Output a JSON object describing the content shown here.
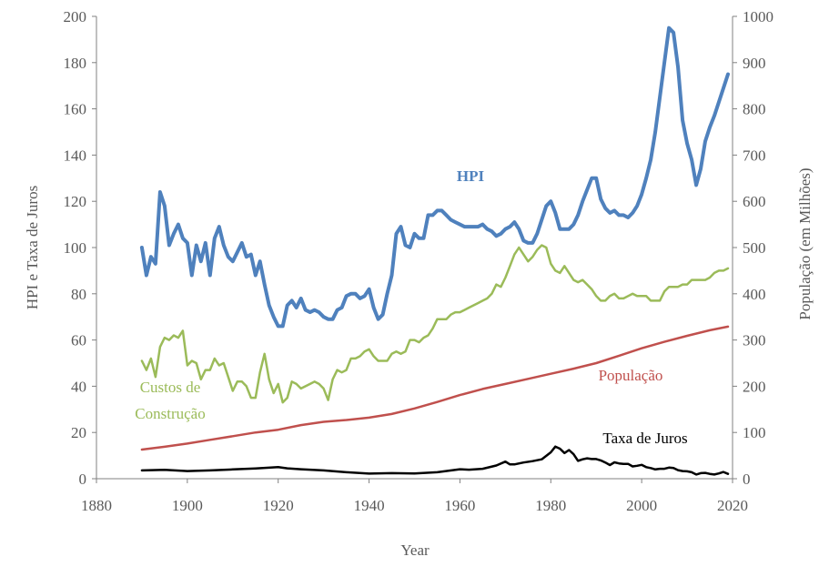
{
  "chart_data": {
    "type": "line",
    "xlabel": "Year",
    "ylabel_left": "HPI e Taxa de Juros",
    "ylabel_right": "População (em Milhões)",
    "xlim": [
      1880,
      2020
    ],
    "xticks": [
      "1880",
      "1900",
      "1920",
      "1940",
      "1960",
      "1980",
      "2000",
      "2020"
    ],
    "ylim_left": [
      0,
      200
    ],
    "yticks_left": [
      "0",
      "20",
      "40",
      "60",
      "80",
      "100",
      "120",
      "140",
      "160",
      "180",
      "200"
    ],
    "ylim_right": [
      0,
      1000
    ],
    "yticks_right": [
      "0",
      "100",
      "200",
      "300",
      "400",
      "500",
      "600",
      "700",
      "800",
      "900",
      "1000"
    ],
    "grid": false,
    "series": [
      {
        "name": "HPI",
        "label_text": "HPI",
        "axis": "left",
        "color": "#4f81bd",
        "x": [
          1890,
          1891,
          1892,
          1893,
          1894,
          1895,
          1896,
          1897,
          1898,
          1899,
          1900,
          1901,
          1902,
          1903,
          1904,
          1905,
          1906,
          1907,
          1908,
          1909,
          1910,
          1911,
          1912,
          1913,
          1914,
          1915,
          1916,
          1917,
          1918,
          1919,
          1920,
          1921,
          1922,
          1923,
          1924,
          1925,
          1926,
          1927,
          1928,
          1929,
          1930,
          1931,
          1932,
          1933,
          1934,
          1935,
          1936,
          1937,
          1938,
          1939,
          1940,
          1941,
          1942,
          1943,
          1944,
          1945,
          1946,
          1947,
          1948,
          1949,
          1950,
          1951,
          1952,
          1953,
          1954,
          1955,
          1956,
          1957,
          1958,
          1959,
          1960,
          1961,
          1962,
          1963,
          1964,
          1965,
          1966,
          1967,
          1968,
          1969,
          1970,
          1971,
          1972,
          1973,
          1974,
          1975,
          1976,
          1977,
          1978,
          1979,
          1980,
          1981,
          1982,
          1983,
          1984,
          1985,
          1986,
          1987,
          1988,
          1989,
          1990,
          1991,
          1992,
          1993,
          1994,
          1995,
          1996,
          1997,
          1998,
          1999,
          2000,
          2001,
          2002,
          2003,
          2004,
          2005,
          2006,
          2007,
          2008,
          2009,
          2010,
          2011,
          2012,
          2013,
          2014,
          2015,
          2016,
          2017,
          2018,
          2019
        ],
        "values": [
          100,
          88,
          96,
          93,
          124,
          118,
          101,
          106,
          110,
          104,
          102,
          88,
          101,
          94,
          102,
          88,
          104,
          109,
          101,
          96,
          94,
          98,
          102,
          96,
          97,
          88,
          94,
          84,
          75,
          70,
          66,
          66,
          75,
          77,
          74,
          78,
          73,
          72,
          73,
          72,
          70,
          69,
          69,
          73,
          74,
          79,
          80,
          80,
          78,
          79,
          82,
          74,
          69,
          71,
          80,
          88,
          106,
          109,
          101,
          100,
          106,
          104,
          104,
          114,
          114,
          116,
          116,
          114,
          112,
          111,
          110,
          109,
          109,
          109,
          109,
          110,
          108,
          107,
          105,
          106,
          108,
          109,
          111,
          108,
          103,
          102,
          102,
          106,
          112,
          118,
          120,
          115,
          108,
          108,
          108,
          110,
          114,
          120,
          125,
          130,
          130,
          121,
          117,
          115,
          116,
          114,
          114,
          113,
          115,
          118,
          123,
          130,
          138,
          150,
          165,
          180,
          195,
          193,
          178,
          155,
          145,
          138,
          127,
          134,
          146,
          152,
          157,
          163,
          169,
          175
        ]
      },
      {
        "name": "Custos de Construção",
        "label_text": [
          "Custos de",
          "Construção"
        ],
        "axis": "left",
        "color": "#9bbb59",
        "x": [
          1890,
          1891,
          1892,
          1893,
          1894,
          1895,
          1896,
          1897,
          1898,
          1899,
          1900,
          1901,
          1902,
          1903,
          1904,
          1905,
          1906,
          1907,
          1908,
          1909,
          1910,
          1911,
          1912,
          1913,
          1914,
          1915,
          1916,
          1917,
          1918,
          1919,
          1920,
          1921,
          1922,
          1923,
          1924,
          1925,
          1926,
          1927,
          1928,
          1929,
          1930,
          1931,
          1932,
          1933,
          1934,
          1935,
          1936,
          1937,
          1938,
          1939,
          1940,
          1941,
          1942,
          1943,
          1944,
          1945,
          1946,
          1947,
          1948,
          1949,
          1950,
          1951,
          1952,
          1953,
          1954,
          1955,
          1956,
          1957,
          1958,
          1959,
          1960,
          1961,
          1962,
          1963,
          1964,
          1965,
          1966,
          1967,
          1968,
          1969,
          1970,
          1971,
          1972,
          1973,
          1974,
          1975,
          1976,
          1977,
          1978,
          1979,
          1980,
          1981,
          1982,
          1983,
          1984,
          1985,
          1986,
          1987,
          1988,
          1989,
          1990,
          1991,
          1992,
          1993,
          1994,
          1995,
          1996,
          1997,
          1998,
          1999,
          2000,
          2001,
          2002,
          2003,
          2004,
          2005,
          2006,
          2007,
          2008,
          2009,
          2010,
          2011,
          2012,
          2013,
          2014,
          2015,
          2016,
          2017,
          2018,
          2019
        ],
        "values": [
          51,
          47,
          52,
          44,
          57,
          61,
          60,
          62,
          61,
          64,
          49,
          51,
          50,
          43,
          47,
          47,
          52,
          49,
          50,
          44,
          38,
          42,
          42,
          40,
          35,
          35,
          46,
          54,
          43,
          37,
          41,
          33,
          35,
          42,
          41,
          39,
          40,
          41,
          42,
          41,
          39,
          34,
          43,
          47,
          46,
          47,
          52,
          52,
          53,
          55,
          56,
          53,
          51,
          51,
          51,
          54,
          55,
          54,
          55,
          60,
          60,
          59,
          61,
          62,
          65,
          69,
          69,
          69,
          71,
          72,
          72,
          73,
          74,
          75,
          76,
          77,
          78,
          80,
          84,
          83,
          87,
          92,
          97,
          100,
          97,
          94,
          96,
          99,
          101,
          100,
          93,
          90,
          89,
          92,
          89,
          86,
          85,
          86,
          84,
          82,
          79,
          77,
          77,
          79,
          80,
          78,
          78,
          79,
          80,
          79,
          79,
          79,
          77,
          77,
          77,
          81,
          83,
          83,
          83,
          84,
          84,
          86,
          86,
          86,
          86,
          87,
          89,
          90,
          90,
          91
        ]
      },
      {
        "name": "População",
        "label_text": "População",
        "axis": "right",
        "color": "#c0504d",
        "x": [
          1890,
          1895,
          1900,
          1905,
          1910,
          1915,
          1920,
          1925,
          1930,
          1935,
          1940,
          1945,
          1950,
          1955,
          1960,
          1965,
          1970,
          1975,
          1980,
          1985,
          1990,
          1995,
          2000,
          2005,
          2010,
          2015,
          2019
        ],
        "values": [
          63,
          69,
          76,
          84,
          92,
          100,
          106,
          116,
          123,
          127,
          132,
          140,
          152,
          166,
          181,
          194,
          205,
          216,
          227,
          238,
          250,
          266,
          282,
          296,
          309,
          321,
          329
        ]
      },
      {
        "name": "Taxa de Juros",
        "label_text": "Taxa de Juros",
        "axis": "left",
        "color": "#000000",
        "x": [
          1890,
          1895,
          1900,
          1905,
          1910,
          1915,
          1920,
          1922,
          1925,
          1930,
          1935,
          1940,
          1945,
          1950,
          1955,
          1960,
          1962,
          1965,
          1968,
          1970,
          1971,
          1972,
          1974,
          1976,
          1978,
          1980,
          1981,
          1982,
          1983,
          1984,
          1985,
          1986,
          1987,
          1988,
          1989,
          1990,
          1991,
          1992,
          1993,
          1994,
          1995,
          1996,
          1997,
          1998,
          1999,
          2000,
          2001,
          2002,
          2003,
          2004,
          2005,
          2006,
          2007,
          2008,
          2009,
          2010,
          2011,
          2012,
          2013,
          2014,
          2015,
          2016,
          2017,
          2018,
          2019
        ],
        "values": [
          3.6,
          3.8,
          3.3,
          3.6,
          4.0,
          4.4,
          5.0,
          4.5,
          4.1,
          3.6,
          2.8,
          2.2,
          2.4,
          2.3,
          2.8,
          4.1,
          3.9,
          4.3,
          5.7,
          7.4,
          6.2,
          6.2,
          7.0,
          7.6,
          8.4,
          11.4,
          13.9,
          13.0,
          11.1,
          12.4,
          10.6,
          7.7,
          8.4,
          8.8,
          8.5,
          8.5,
          7.9,
          7.0,
          5.9,
          7.1,
          6.6,
          6.4,
          6.4,
          5.3,
          5.6,
          6.0,
          5.0,
          4.6,
          4.0,
          4.3,
          4.3,
          4.8,
          4.6,
          3.7,
          3.3,
          3.2,
          2.8,
          1.8,
          2.4,
          2.5,
          2.1,
          1.8,
          2.3,
          2.9,
          2.1
        ]
      }
    ]
  }
}
